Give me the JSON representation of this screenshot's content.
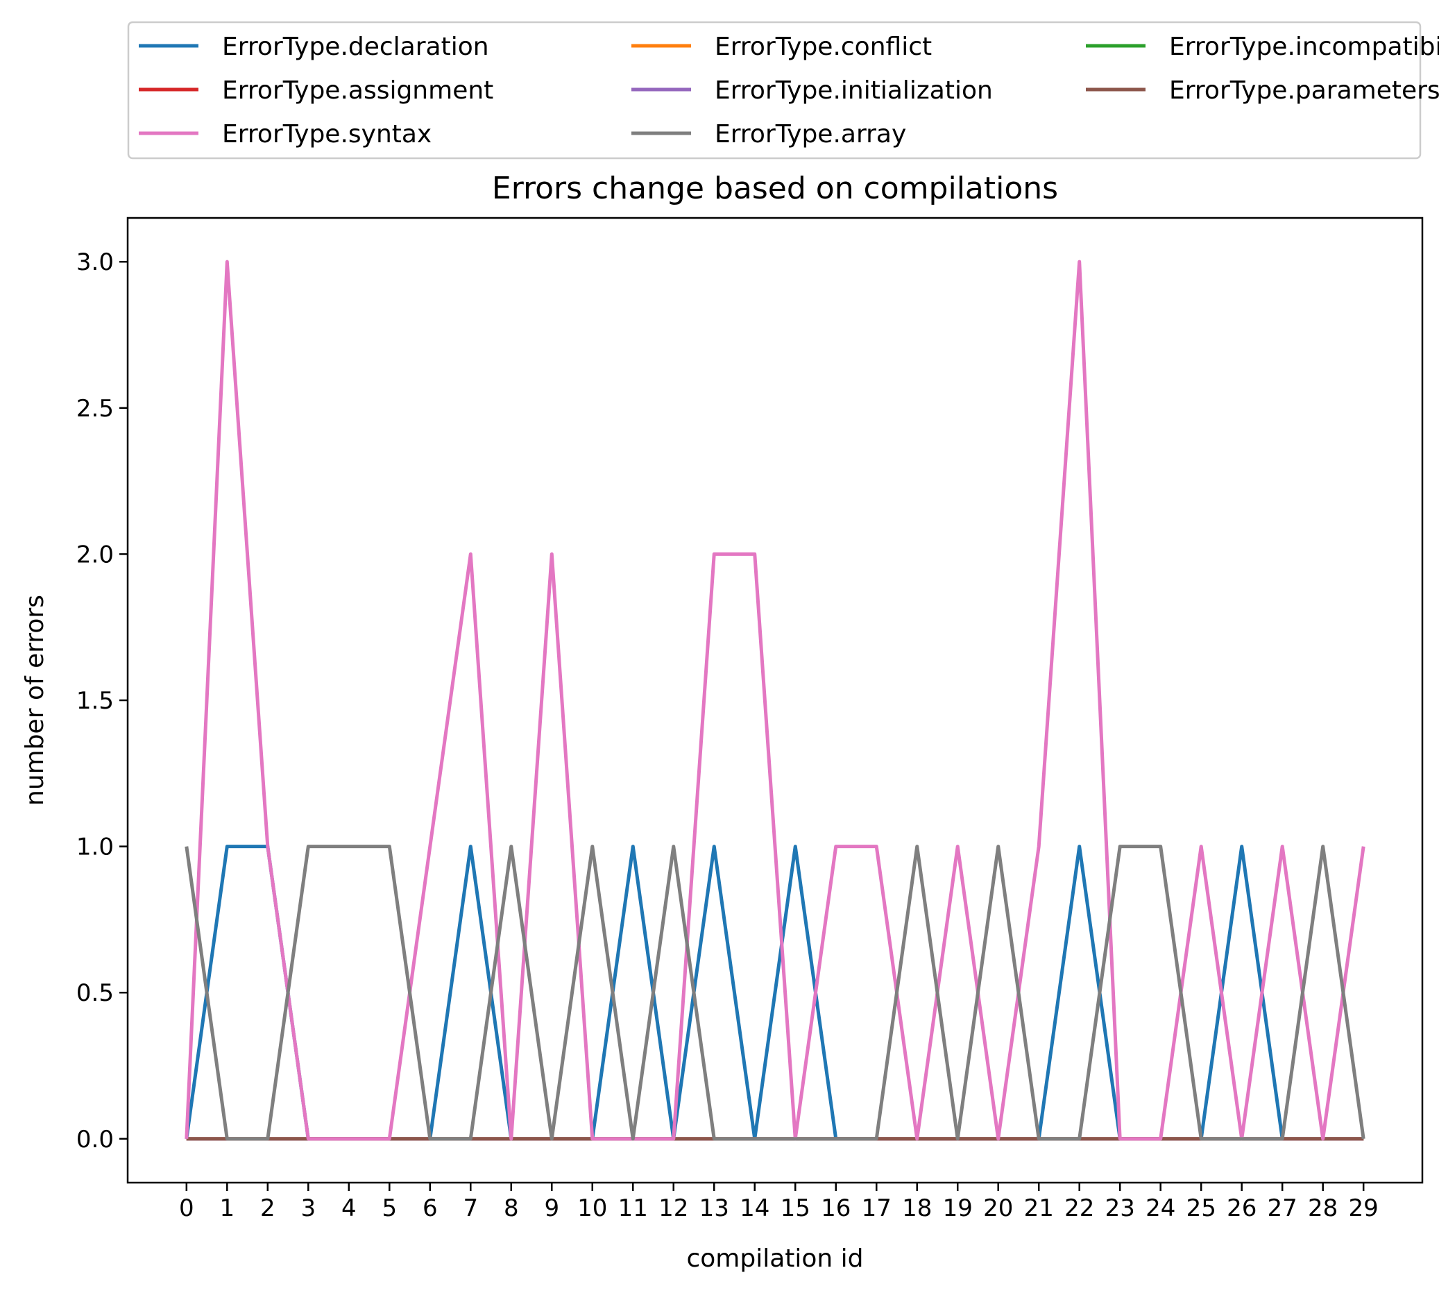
{
  "chart_data": {
    "type": "line",
    "title": "Errors change based on compilations",
    "xlabel": "compilation id",
    "ylabel": "number of errors",
    "xlim": [
      -1.45,
      30.45
    ],
    "ylim": [
      -0.15,
      3.15
    ],
    "x": [
      0,
      1,
      2,
      3,
      4,
      5,
      6,
      7,
      8,
      9,
      10,
      11,
      12,
      13,
      14,
      15,
      16,
      17,
      18,
      19,
      20,
      21,
      22,
      23,
      24,
      25,
      26,
      27,
      28,
      29
    ],
    "x_ticks": [
      "0",
      "1",
      "2",
      "3",
      "4",
      "5",
      "6",
      "7",
      "8",
      "9",
      "10",
      "11",
      "12",
      "13",
      "14",
      "15",
      "16",
      "17",
      "18",
      "19",
      "20",
      "21",
      "22",
      "23",
      "24",
      "25",
      "26",
      "27",
      "28",
      "29"
    ],
    "y_ticks": [
      "0.0",
      "0.5",
      "1.0",
      "1.5",
      "2.0",
      "2.5",
      "3.0"
    ],
    "y_tick_values": [
      0,
      0.5,
      1.0,
      1.5,
      2.0,
      2.5,
      3.0
    ],
    "legend_placement": "top, above plot, 3 columns",
    "series": [
      {
        "name": "ErrorType.declaration",
        "color": "#1f77b4",
        "values": [
          0,
          1,
          1,
          0,
          0,
          0,
          0,
          1,
          0,
          0,
          0,
          1,
          0,
          1,
          0,
          1,
          0,
          0,
          0,
          0,
          0,
          0,
          1,
          0,
          0,
          0,
          1,
          0,
          0,
          0
        ]
      },
      {
        "name": "ErrorType.conflict",
        "color": "#ff7f0e",
        "values": [
          0,
          0,
          0,
          0,
          0,
          0,
          0,
          0,
          0,
          0,
          0,
          0,
          0,
          0,
          0,
          0,
          0,
          0,
          0,
          0,
          0,
          0,
          0,
          0,
          0,
          0,
          0,
          0,
          0,
          0
        ]
      },
      {
        "name": "ErrorType.incompatibility",
        "color": "#2ca02c",
        "values": [
          0,
          0,
          0,
          0,
          0,
          0,
          0,
          0,
          0,
          0,
          0,
          0,
          0,
          0,
          0,
          0,
          0,
          0,
          0,
          0,
          0,
          0,
          0,
          0,
          0,
          0,
          0,
          0,
          0,
          0
        ]
      },
      {
        "name": "ErrorType.assignment",
        "color": "#d62728",
        "values": [
          0,
          0,
          0,
          0,
          0,
          0,
          0,
          0,
          0,
          0,
          0,
          0,
          0,
          0,
          0,
          0,
          0,
          0,
          0,
          0,
          0,
          0,
          0,
          0,
          0,
          0,
          0,
          0,
          0,
          0
        ]
      },
      {
        "name": "ErrorType.initialization",
        "color": "#9467bd",
        "values": [
          0,
          0,
          0,
          0,
          0,
          0,
          0,
          0,
          0,
          0,
          0,
          0,
          0,
          0,
          0,
          0,
          0,
          0,
          0,
          0,
          0,
          0,
          0,
          0,
          0,
          0,
          0,
          0,
          0,
          0
        ]
      },
      {
        "name": "ErrorType.parameters",
        "color": "#8c564b",
        "values": [
          0,
          0,
          0,
          0,
          0,
          0,
          0,
          0,
          0,
          0,
          0,
          0,
          0,
          0,
          0,
          0,
          0,
          0,
          0,
          0,
          0,
          0,
          0,
          0,
          0,
          0,
          0,
          0,
          0,
          0
        ]
      },
      {
        "name": "ErrorType.syntax",
        "color": "#e377c2",
        "values": [
          0,
          3,
          1,
          0,
          0,
          0,
          1,
          2,
          0,
          2,
          0,
          0,
          0,
          2,
          2,
          0,
          1,
          1,
          0,
          1,
          0,
          1,
          3,
          0,
          0,
          1,
          0,
          1,
          0,
          1
        ]
      },
      {
        "name": "ErrorType.array",
        "color": "#7f7f7f",
        "values": [
          1,
          0,
          0,
          1,
          1,
          1,
          0,
          0,
          1,
          0,
          1,
          0,
          1,
          0,
          0,
          0,
          0,
          0,
          1,
          0,
          1,
          0,
          0,
          1,
          1,
          0,
          0,
          0,
          1,
          0
        ]
      }
    ],
    "legend_order": [
      0,
      3,
      6,
      1,
      4,
      7,
      2,
      5
    ]
  }
}
